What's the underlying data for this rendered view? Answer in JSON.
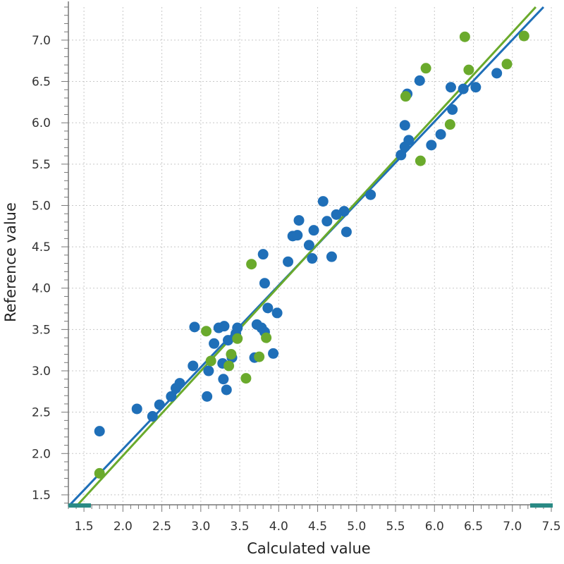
{
  "chart_data": {
    "type": "scatter",
    "title": "",
    "xlabel": "Calculated value",
    "ylabel": "Reference value",
    "xlim": [
      1.3,
      7.5
    ],
    "ylim": [
      1.38,
      7.4
    ],
    "x_ticks": [
      "1.5",
      "2.0",
      "2.5",
      "3.0",
      "3.5",
      "4.0",
      "4.5",
      "5.0",
      "5.5",
      "6.0",
      "6.5",
      "7.0",
      "7.5"
    ],
    "y_ticks": [
      "1.5",
      "2.0",
      "2.5",
      "3.0",
      "3.5",
      "4.0",
      "4.5",
      "5.0",
      "5.5",
      "6.0",
      "6.5",
      "7.0"
    ],
    "grid": true,
    "legend": "none",
    "colors": {
      "blue": "#1f6fb8",
      "green": "#6aaa2c",
      "teal": "#2a8a85",
      "grid": "#c8c8c8",
      "axis": "#777777"
    },
    "series": [
      {
        "color": "#1f6fb8",
        "points": [
          [
            1.7,
            2.27
          ],
          [
            2.18,
            2.54
          ],
          [
            2.38,
            2.45
          ],
          [
            2.47,
            2.59
          ],
          [
            2.62,
            2.69
          ],
          [
            2.68,
            2.79
          ],
          [
            2.73,
            2.85
          ],
          [
            2.9,
            3.06
          ],
          [
            2.92,
            3.53
          ],
          [
            3.08,
            2.69
          ],
          [
            3.1,
            3.0
          ],
          [
            3.17,
            3.33
          ],
          [
            3.23,
            3.52
          ],
          [
            3.28,
            3.09
          ],
          [
            3.29,
            2.9
          ],
          [
            3.3,
            3.54
          ],
          [
            3.33,
            2.77
          ],
          [
            3.35,
            3.37
          ],
          [
            3.4,
            3.16
          ],
          [
            3.45,
            3.45
          ],
          [
            3.47,
            3.52
          ],
          [
            3.69,
            3.16
          ],
          [
            3.72,
            3.56
          ],
          [
            3.78,
            3.52
          ],
          [
            3.8,
            4.41
          ],
          [
            3.82,
            4.06
          ],
          [
            3.82,
            3.47
          ],
          [
            3.86,
            3.76
          ],
          [
            3.93,
            3.21
          ],
          [
            3.98,
            3.7
          ],
          [
            4.12,
            4.32
          ],
          [
            4.18,
            4.63
          ],
          [
            4.24,
            4.64
          ],
          [
            4.26,
            4.82
          ],
          [
            4.39,
            4.52
          ],
          [
            4.43,
            4.36
          ],
          [
            4.45,
            4.7
          ],
          [
            4.57,
            5.05
          ],
          [
            4.62,
            4.81
          ],
          [
            4.68,
            4.38
          ],
          [
            4.74,
            4.89
          ],
          [
            4.84,
            4.93
          ],
          [
            4.87,
            4.68
          ],
          [
            5.18,
            5.13
          ],
          [
            5.57,
            5.61
          ],
          [
            5.62,
            5.71
          ],
          [
            5.62,
            5.97
          ],
          [
            5.65,
            6.35
          ],
          [
            5.67,
            5.79
          ],
          [
            5.81,
            6.51
          ],
          [
            5.96,
            5.73
          ],
          [
            6.08,
            5.86
          ],
          [
            6.21,
            6.43
          ],
          [
            6.23,
            6.16
          ],
          [
            6.37,
            6.41
          ],
          [
            6.53,
            6.43
          ],
          [
            6.8,
            6.6
          ]
        ]
      },
      {
        "color": "#6aaa2c",
        "points": [
          [
            1.7,
            1.76
          ],
          [
            3.07,
            3.48
          ],
          [
            3.13,
            3.12
          ],
          [
            3.36,
            3.06
          ],
          [
            3.39,
            3.2
          ],
          [
            3.47,
            3.39
          ],
          [
            3.58,
            2.91
          ],
          [
            3.65,
            4.29
          ],
          [
            3.75,
            3.17
          ],
          [
            3.84,
            3.4
          ],
          [
            5.63,
            6.32
          ],
          [
            5.82,
            5.54
          ],
          [
            5.89,
            6.66
          ],
          [
            6.2,
            5.98
          ],
          [
            6.39,
            7.04
          ],
          [
            6.44,
            6.64
          ],
          [
            6.93,
            6.71
          ],
          [
            7.15,
            7.05
          ]
        ]
      }
    ],
    "fit_lines": [
      {
        "color": "#1f6fb8",
        "from": [
          1.3,
          1.36
        ],
        "to": [
          7.4,
          7.4
        ]
      },
      {
        "color": "#6aaa2c",
        "from": [
          1.4,
          1.36
        ],
        "to": [
          7.3,
          7.4
        ]
      }
    ]
  }
}
